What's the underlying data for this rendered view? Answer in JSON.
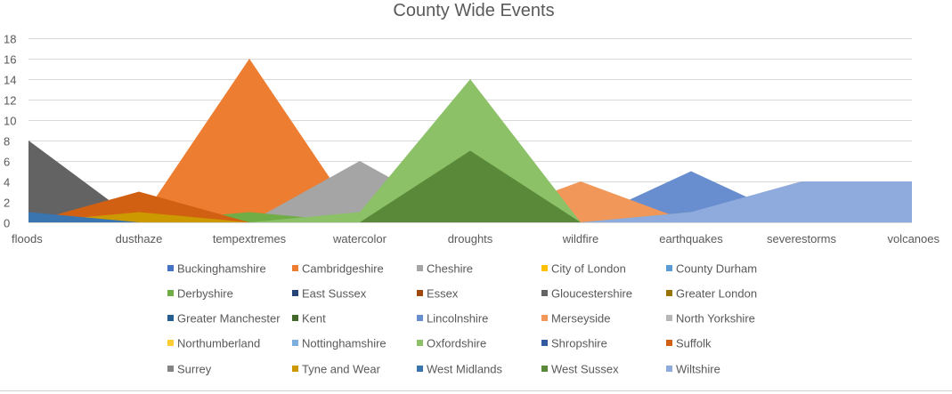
{
  "chart_data": {
    "type": "area",
    "title": "County Wide Events",
    "categories": [
      "floods",
      "dusthaze",
      "tempextremes",
      "watercolor",
      "droughts",
      "wildfire",
      "earthquakes",
      "severestorms",
      "volcanoes"
    ],
    "yticks": [
      0,
      2,
      4,
      6,
      8,
      10,
      12,
      14,
      16,
      18
    ],
    "ylim": [
      0,
      18
    ],
    "grid": true,
    "legend_position": "bottom",
    "series": [
      {
        "name": "Buckinghamshire",
        "color": "#4472c4",
        "values": [
          0,
          0,
          0,
          0,
          0,
          0,
          0,
          0,
          0
        ]
      },
      {
        "name": "Cambridgeshire",
        "color": "#ed7d31",
        "values": [
          0,
          0,
          16,
          0,
          0,
          0,
          0,
          0,
          0
        ]
      },
      {
        "name": "Cheshire",
        "color": "#a5a5a5",
        "values": [
          0,
          0,
          0,
          6,
          0,
          0,
          0,
          0,
          0
        ]
      },
      {
        "name": "City of London",
        "color": "#ffc000",
        "values": [
          0,
          0,
          0,
          0,
          0,
          0,
          0,
          0,
          0
        ]
      },
      {
        "name": "County Durham",
        "color": "#5b9bd5",
        "values": [
          0,
          0,
          0,
          0,
          0,
          0,
          0,
          0,
          0
        ]
      },
      {
        "name": "Derbyshire",
        "color": "#70ad47",
        "values": [
          0,
          0,
          1,
          0,
          0,
          0,
          0,
          0,
          0
        ]
      },
      {
        "name": "East Sussex",
        "color": "#264478",
        "values": [
          0,
          0,
          0,
          0,
          0,
          0,
          0,
          0,
          0
        ]
      },
      {
        "name": "Essex",
        "color": "#9e480e",
        "values": [
          0,
          0,
          0,
          0,
          0,
          0,
          0,
          0,
          0
        ]
      },
      {
        "name": "Gloucestershire",
        "color": "#636363",
        "values": [
          8,
          0,
          0,
          0,
          0,
          1,
          0,
          0,
          0
        ]
      },
      {
        "name": "Greater London",
        "color": "#997300",
        "values": [
          0,
          0,
          0,
          0,
          0,
          0,
          0,
          0,
          0
        ]
      },
      {
        "name": "Greater Manchester",
        "color": "#255e91",
        "values": [
          0,
          0,
          0,
          0,
          0,
          0,
          0,
          0,
          0
        ]
      },
      {
        "name": "Kent",
        "color": "#43682b",
        "values": [
          0,
          0,
          0,
          0,
          0,
          0,
          0,
          0,
          0
        ]
      },
      {
        "name": "Lincolnshire",
        "color": "#698ed0",
        "values": [
          0,
          0,
          0,
          0,
          0,
          0,
          5,
          0,
          0
        ]
      },
      {
        "name": "Merseyside",
        "color": "#f1975a",
        "values": [
          0,
          0,
          0,
          0,
          0,
          4,
          0,
          0,
          0
        ]
      },
      {
        "name": "North Yorkshire",
        "color": "#b7b7b7",
        "values": [
          0,
          0,
          0,
          0,
          0,
          0,
          0,
          0,
          0
        ]
      },
      {
        "name": "Northumberland",
        "color": "#ffcd33",
        "values": [
          0,
          0,
          0,
          0,
          0,
          0,
          0,
          0,
          0
        ]
      },
      {
        "name": "Nottinghamshire",
        "color": "#7cafdd",
        "values": [
          0,
          0,
          0,
          0,
          0,
          0,
          0,
          0,
          0
        ]
      },
      {
        "name": "Oxfordshire",
        "color": "#8cc168",
        "values": [
          0,
          0,
          0,
          1,
          14,
          0,
          1,
          0,
          0
        ]
      },
      {
        "name": "Shropshire",
        "color": "#335aa1",
        "values": [
          0,
          0,
          0,
          0,
          0,
          0,
          0,
          0,
          0
        ]
      },
      {
        "name": "Suffolk",
        "color": "#d26012",
        "values": [
          0,
          3,
          0,
          0,
          0,
          0,
          0,
          0,
          0
        ]
      },
      {
        "name": "Surrey",
        "color": "#848484",
        "values": [
          0,
          0,
          0,
          0,
          0,
          0,
          0,
          0,
          0
        ]
      },
      {
        "name": "Tyne and Wear",
        "color": "#cc9a00",
        "values": [
          0,
          1,
          0,
          0,
          0,
          0,
          0,
          0,
          0
        ]
      },
      {
        "name": "West Midlands",
        "color": "#3a75b0",
        "values": [
          1,
          0,
          0,
          0,
          0,
          0,
          0,
          0,
          0
        ]
      },
      {
        "name": "West Sussex",
        "color": "#5a8a39",
        "values": [
          0,
          0,
          0,
          0,
          7,
          0,
          0,
          0,
          0
        ]
      },
      {
        "name": "Wiltshire",
        "color": "#8faadc",
        "values": [
          0,
          0,
          0,
          0,
          0,
          0,
          1,
          4,
          4
        ]
      }
    ]
  }
}
